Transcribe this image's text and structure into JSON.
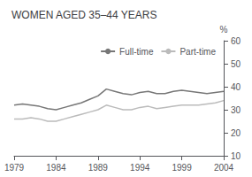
{
  "chart_data": {
    "type": "line",
    "title": "WOMEN AGED 35–44 YEARS",
    "ylabel": "%",
    "x": [
      1979,
      1980,
      1981,
      1982,
      1983,
      1984,
      1985,
      1986,
      1987,
      1988,
      1989,
      1990,
      1991,
      1992,
      1993,
      1994,
      1995,
      1996,
      1997,
      1998,
      1999,
      2000,
      2001,
      2002,
      2003,
      2004
    ],
    "series": [
      {
        "name": "Full-time",
        "color": "#777777",
        "values": [
          32,
          32.5,
          32,
          31.5,
          30.5,
          30,
          31,
          32,
          33,
          34.5,
          36,
          39,
          38,
          37,
          36.5,
          37.5,
          38,
          37,
          37,
          38,
          38.5,
          38,
          37.5,
          37,
          37.5,
          38
        ]
      },
      {
        "name": "Part-time",
        "color": "#bbbbbb",
        "values": [
          26,
          26,
          26.5,
          26,
          25,
          25,
          26,
          27,
          28,
          29,
          30,
          32,
          31,
          30,
          30,
          31,
          31.5,
          30.5,
          31,
          31.5,
          32,
          32,
          32,
          32.5,
          33,
          34
        ]
      }
    ],
    "xlim": [
      1979,
      2004
    ],
    "xticks": [
      1979,
      1984,
      1989,
      1994,
      1999,
      2004
    ],
    "ylim": [
      10,
      60
    ],
    "yticks": [
      10,
      20,
      30,
      40,
      50,
      60
    ],
    "grid": false,
    "legend": "upper right"
  }
}
